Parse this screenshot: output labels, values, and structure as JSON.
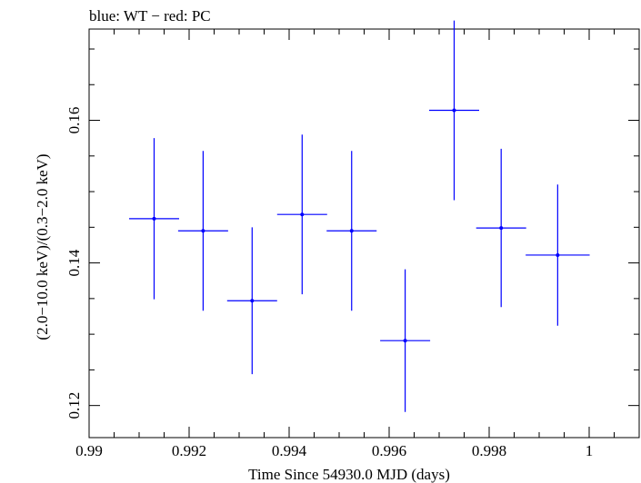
{
  "chart_data": {
    "type": "scatter",
    "title": "blue: WT − red: PC",
    "xlabel": "Time Since 54930.0 MJD (days)",
    "ylabel": "(2.0−10.0 keV)/(0.3−2.0 keV)",
    "xlim": [
      0.99,
      1.001
    ],
    "ylim": [
      0.1155,
      0.1728
    ],
    "x_ticks": [
      {
        "value": 0.99,
        "label": "0.99"
      },
      {
        "value": 0.992,
        "label": "0.992"
      },
      {
        "value": 0.994,
        "label": "0.994"
      },
      {
        "value": 0.996,
        "label": "0.996"
      },
      {
        "value": 0.998,
        "label": "0.998"
      },
      {
        "value": 1.0,
        "label": "1"
      }
    ],
    "y_ticks": [
      {
        "value": 0.12,
        "label": "0.12"
      },
      {
        "value": 0.14,
        "label": "0.14"
      },
      {
        "value": 0.16,
        "label": "0.16"
      }
    ],
    "series": [
      {
        "name": "WT",
        "color": "#0000ff",
        "points": [
          {
            "x": 0.9913,
            "xerr": 0.0005,
            "y": 0.1462,
            "yerr": 0.0113
          },
          {
            "x": 0.99228,
            "xerr": 0.0005,
            "y": 0.1445,
            "yerr": 0.0112
          },
          {
            "x": 0.99326,
            "xerr": 0.0005,
            "y": 0.1347,
            "yerr": 0.0103
          },
          {
            "x": 0.99426,
            "xerr": 0.0005,
            "y": 0.1468,
            "yerr": 0.0112
          },
          {
            "x": 0.99525,
            "xerr": 0.0005,
            "y": 0.1445,
            "yerr": 0.0112
          },
          {
            "x": 0.99632,
            "xerr": 0.0005,
            "y": 0.1291,
            "yerr": 0.01
          },
          {
            "x": 0.9973,
            "xerr": 0.0005,
            "y": 0.1614,
            "yerr": 0.0126
          },
          {
            "x": 0.99824,
            "xerr": 0.0005,
            "y": 0.1449,
            "yerr": 0.0111
          },
          {
            "x": 0.99937,
            "xerr": 0.00064,
            "y": 0.1411,
            "yerr": 0.0099
          }
        ]
      },
      {
        "name": "PC",
        "color": "#ff0000",
        "points": []
      }
    ]
  }
}
